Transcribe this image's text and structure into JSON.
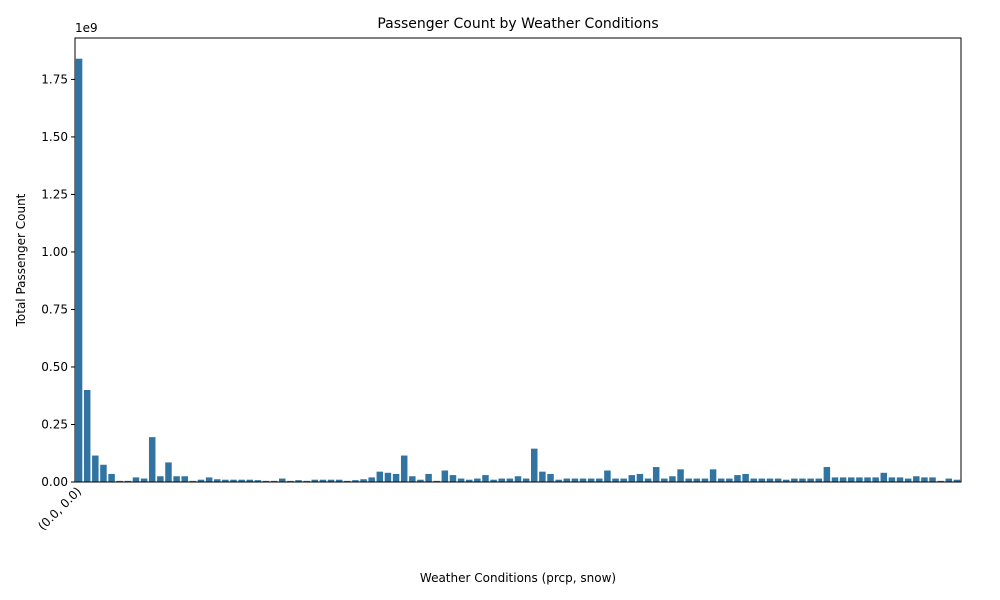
{
  "chart_data": {
    "type": "bar",
    "title": "Passenger Count by Weather Conditions",
    "xlabel": "Weather Conditions (prcp, snow)",
    "ylabel": "Total Passenger Count",
    "y_offset_label": "1e9",
    "categories": [
      "(0.0, 0.0)",
      null,
      null,
      null,
      null,
      null,
      null,
      null,
      null,
      null,
      null,
      null,
      null,
      null,
      null,
      null,
      null,
      null,
      null,
      null,
      null,
      null,
      null,
      null,
      null,
      null,
      null,
      null,
      null,
      null,
      null,
      null,
      null,
      null,
      null,
      null,
      null,
      null,
      null,
      null,
      null,
      null,
      null,
      null,
      null,
      null,
      null,
      null,
      null,
      null,
      null,
      null,
      null,
      null,
      null,
      null,
      null,
      null,
      null,
      null,
      null,
      null,
      null,
      null,
      null,
      null,
      null,
      null,
      null,
      null,
      null,
      null,
      null,
      null,
      null,
      null,
      null,
      null,
      null,
      null,
      null,
      null,
      null,
      null,
      null,
      null,
      null,
      null,
      null,
      null,
      null,
      null,
      null,
      null,
      null,
      null,
      null,
      null,
      null,
      null,
      null,
      null,
      null,
      null,
      null,
      null,
      null,
      null,
      null
    ],
    "values": [
      1.84,
      0.4,
      0.115,
      0.075,
      0.035,
      0.005,
      0.005,
      0.02,
      0.015,
      0.195,
      0.025,
      0.085,
      0.025,
      0.025,
      0.005,
      0.01,
      0.02,
      0.012,
      0.01,
      0.01,
      0.01,
      0.01,
      0.008,
      0.005,
      0.005,
      0.015,
      0.005,
      0.008,
      0.005,
      0.01,
      0.01,
      0.01,
      0.01,
      0.005,
      0.008,
      0.012,
      0.02,
      0.045,
      0.04,
      0.035,
      0.115,
      0.025,
      0.01,
      0.035,
      0.005,
      0.05,
      0.03,
      0.015,
      0.01,
      0.015,
      0.03,
      0.01,
      0.015,
      0.015,
      0.025,
      0.015,
      0.145,
      0.045,
      0.035,
      0.01,
      0.015,
      0.015,
      0.015,
      0.015,
      0.015,
      0.05,
      0.015,
      0.015,
      0.03,
      0.035,
      0.015,
      0.065,
      0.015,
      0.025,
      0.055,
      0.015,
      0.015,
      0.015,
      0.055,
      0.015,
      0.015,
      0.03,
      0.035,
      0.015,
      0.015,
      0.015,
      0.015,
      0.01,
      0.015,
      0.015,
      0.015,
      0.015,
      0.065,
      0.02,
      0.02,
      0.02,
      0.02,
      0.02,
      0.02,
      0.04,
      0.02,
      0.02,
      0.015,
      0.025,
      0.02,
      0.02,
      0.005,
      0.015,
      0.01
    ],
    "color": "#3274a1",
    "ylim": [
      0,
      1.93
    ],
    "yticks": [
      {
        "value": 0,
        "label": "0.00"
      },
      {
        "value": 0.25,
        "label": "0.25"
      },
      {
        "value": 0.5,
        "label": "0.50"
      },
      {
        "value": 0.75,
        "label": "0.75"
      },
      {
        "value": 1,
        "label": "1.00"
      },
      {
        "value": 1.25,
        "label": "1.25"
      },
      {
        "value": 1.5,
        "label": "1.50"
      },
      {
        "value": 1.75,
        "label": "1.75"
      }
    ],
    "grid": false
  }
}
